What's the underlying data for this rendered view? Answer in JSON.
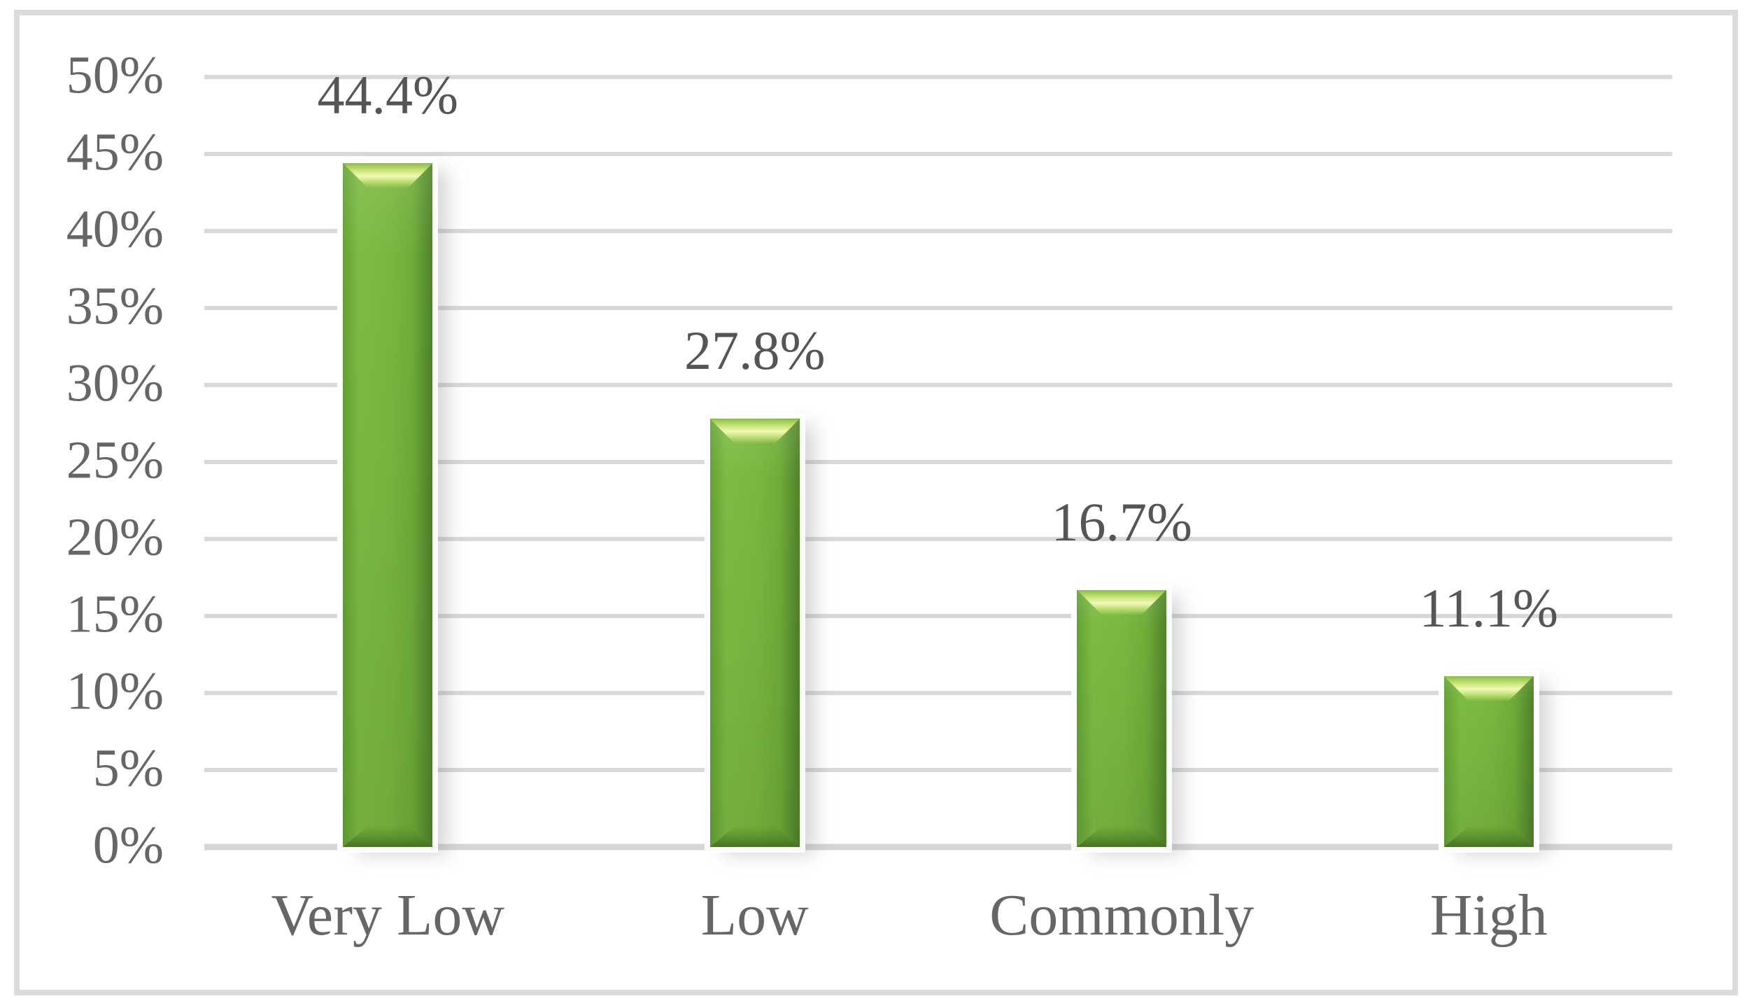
{
  "chart_data": {
    "type": "bar",
    "title": "",
    "xlabel": "",
    "ylabel": "",
    "categories": [
      "Very Low",
      "Low",
      "Commonly",
      "High"
    ],
    "values": [
      44.4,
      27.8,
      16.7,
      11.1
    ],
    "bar_labels": [
      "44.4%",
      "27.8%",
      "16.7%",
      "11.1%"
    ],
    "ylim": [
      0,
      50
    ],
    "ytick_step": 5,
    "yticks": [
      "0%",
      "5%",
      "10%",
      "15%",
      "20%",
      "25%",
      "30%",
      "35%",
      "40%",
      "45%",
      "50%"
    ],
    "grid": true,
    "legend": false,
    "colors": {
      "bar_face": "#74B23C",
      "bar_face_light": "#7CBB43",
      "bar_edge_dark": "#4F8226",
      "bar_bevel_highlight": "#F0FAB4",
      "bar_bevel_shadow": "#47731F",
      "gridline": "#D9D9D9",
      "axis_line": "#D6D6D6",
      "chart_border": "#DBDBDB",
      "tick_text": "#666666",
      "label_text": "#555555",
      "background": "#FFFFFF"
    }
  }
}
